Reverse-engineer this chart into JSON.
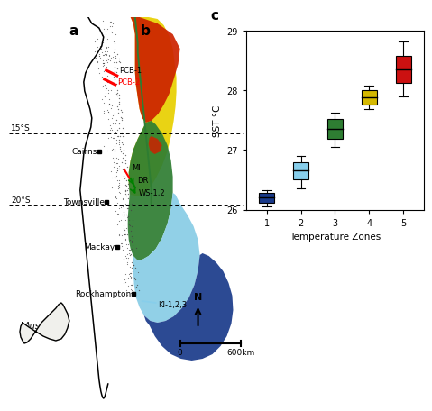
{
  "boxplot": {
    "zones": [
      1,
      2,
      3,
      4,
      5
    ],
    "colors": [
      "#1a3a8a",
      "#87CEEB",
      "#2e7d32",
      "#d4b800",
      "#cc1111"
    ],
    "medians": [
      26.2,
      26.65,
      27.35,
      27.88,
      28.35
    ],
    "q1": [
      26.12,
      26.5,
      27.18,
      27.76,
      28.12
    ],
    "q3": [
      26.28,
      26.8,
      27.52,
      28.0,
      28.58
    ],
    "whisker_low": [
      26.05,
      26.35,
      27.05,
      27.68,
      27.9
    ],
    "whisker_high": [
      26.33,
      26.9,
      27.62,
      28.08,
      28.82
    ],
    "ylabel": "SST °C",
    "xlabel": "Temperature Zones",
    "ylim": [
      26.0,
      29.0
    ],
    "yticks": [
      26,
      27,
      28,
      29
    ]
  },
  "colors": {
    "red_zone": "#cc2200",
    "yellow_zone": "#e8d000",
    "green_zone": "#2e7d32",
    "lightblue_zone": "#7ec8e3",
    "darkblue_zone": "#1a3a8a",
    "green_line": "#2e7d32",
    "coast": "#000000",
    "dots": "#444444"
  },
  "labels": {
    "panel_a": "a",
    "panel_b": "b",
    "panel_c": "c",
    "lat15": "15°S",
    "lat20": "20°S",
    "cairns": "Cairns",
    "townsville": "Townsville",
    "mackay": "Mackay",
    "rockhampton": "Rockhampton",
    "australia": "Australia",
    "north": "N",
    "scale": "600km",
    "pcb1": "PCB-1",
    "pcb2": "PCB-2",
    "mi": "MI",
    "dr": "DR",
    "ws": "WS-1,2",
    "ki": "KI-1,2,3",
    "zero": "0"
  }
}
